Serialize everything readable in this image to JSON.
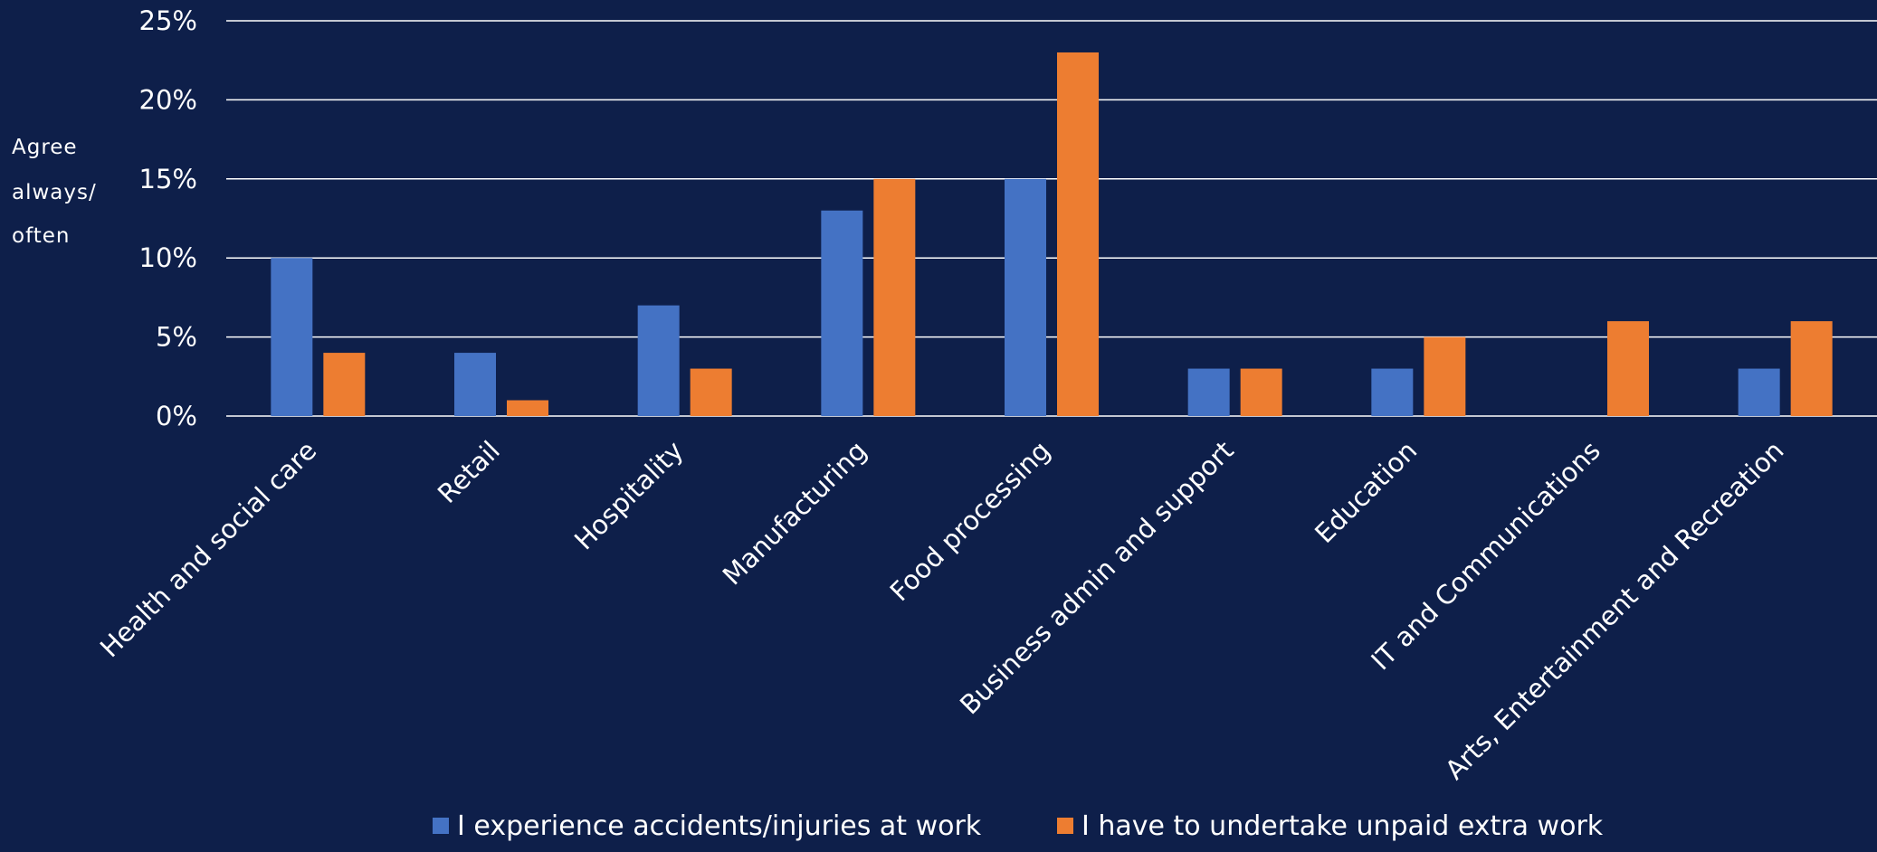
{
  "chart_data": {
    "type": "bar",
    "ylabel_lines": [
      "Agree",
      "always/",
      "often"
    ],
    "ylim": [
      0,
      25
    ],
    "yticks": [
      "0%",
      "5%",
      "10%",
      "15%",
      "20%",
      "25%"
    ],
    "ytick_values": [
      0,
      5,
      10,
      15,
      20,
      25
    ],
    "grid": true,
    "legend_position": "bottom",
    "categories": [
      "Health and social care",
      "Retail",
      "Hospitality",
      "Manufacturing",
      "Food processing",
      "Business admin and support",
      "Education",
      "IT and Communications",
      "Arts, Entertainment and Recreation"
    ],
    "series": [
      {
        "name": "I experience accidents/injuries at work",
        "color": "#4472c4",
        "values": [
          10,
          4,
          7,
          13,
          15,
          3,
          3,
          0,
          3
        ]
      },
      {
        "name": "I have to undertake unpaid extra work",
        "color": "#ed7d31",
        "values": [
          4,
          1,
          3,
          15,
          23,
          3,
          5,
          6,
          6
        ]
      }
    ]
  }
}
